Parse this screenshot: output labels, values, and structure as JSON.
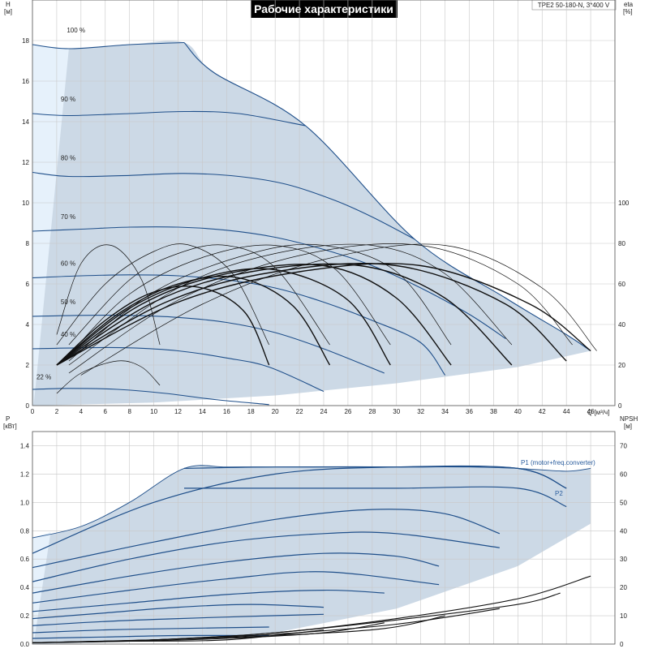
{
  "title": "Рабочие характеристики",
  "model": "TPE2 50-180-N, 3*400 V",
  "top": {
    "ylabel": "H",
    "yunit": "[м]",
    "ylabel_right": "eta",
    "yunit_right": "[%]",
    "xlabel": "Q [м³/ч]",
    "yticks": [
      "0",
      "2",
      "4",
      "6",
      "8",
      "10",
      "12",
      "14",
      "16",
      "18"
    ],
    "yticks_right": [
      "0",
      "20",
      "40",
      "60",
      "80",
      "100"
    ],
    "xticks": [
      "0",
      "2",
      "4",
      "6",
      "8",
      "10",
      "12",
      "14",
      "16",
      "18",
      "20",
      "22",
      "24",
      "26",
      "28",
      "30",
      "32",
      "34",
      "36",
      "38",
      "40",
      "42",
      "44",
      "46"
    ],
    "speed_labels": [
      "100 %",
      "90 %",
      "80 %",
      "70 %",
      "60 %",
      "50 %",
      "40 %",
      "22 %"
    ]
  },
  "bottom": {
    "ylabel": "P",
    "yunit": "[кВт]",
    "ylabel_right": "NPSH",
    "yunit_right": "[м]",
    "yticks": [
      "0.0",
      "0.2",
      "0.4",
      "0.6",
      "0.8",
      "1.0",
      "1.2",
      "1.4"
    ],
    "yticks_right": [
      "0",
      "10",
      "20",
      "30",
      "40",
      "50",
      "60",
      "70"
    ],
    "p1_label": "P1 (motor+freq.converter)",
    "p2_label": "P2"
  },
  "colors": {
    "fill": "#ccd9e6",
    "fill_light": "#e6f1fb",
    "curve": "#1f4f8a",
    "eta": "#111111",
    "title_bg": "#000000"
  },
  "chart_data": [
    {
      "type": "line",
      "title": "Рабочие характеристики",
      "xlabel": "Q [м³/ч]",
      "ylabel": "H [м]",
      "ylabel_right": "eta [%]",
      "xlim": [
        0,
        48
      ],
      "ylim": [
        0,
        20
      ],
      "ylim_right": [
        0,
        200
      ],
      "grid": true,
      "series": [
        {
          "name": "100 %",
          "x": [
            0,
            3,
            8,
            12.5
          ],
          "y": [
            17.8,
            17.6,
            17.8,
            17.9
          ]
        },
        {
          "name": "90 %",
          "x": [
            0,
            3,
            8,
            12.5,
            17,
            22.5
          ],
          "y": [
            14.4,
            14.3,
            14.4,
            14.5,
            14.4,
            13.8
          ]
        },
        {
          "name": "80 %",
          "x": [
            0,
            3,
            8,
            12.5,
            17,
            21,
            25,
            28,
            31.5
          ],
          "y": [
            11.5,
            11.3,
            11.35,
            11.45,
            11.3,
            10.9,
            10.1,
            9.3,
            8.2
          ]
        },
        {
          "name": "70 %",
          "x": [
            0,
            4,
            8,
            12,
            16,
            20,
            24,
            28,
            32,
            36,
            39
          ],
          "y": [
            8.6,
            8.7,
            8.8,
            8.8,
            8.65,
            8.3,
            7.7,
            6.9,
            5.8,
            4.5,
            3.3
          ]
        },
        {
          "name": "60 %",
          "x": [
            0,
            4,
            8,
            12,
            16,
            20,
            24,
            28,
            32,
            34
          ],
          "y": [
            6.3,
            6.4,
            6.45,
            6.4,
            6.2,
            5.8,
            5.1,
            4.2,
            3.1,
            1.5
          ]
        },
        {
          "name": "50 %",
          "x": [
            0,
            4,
            8,
            12,
            16,
            20,
            24,
            29
          ],
          "y": [
            4.4,
            4.45,
            4.45,
            4.35,
            4.1,
            3.6,
            2.8,
            1.6
          ]
        },
        {
          "name": "40 %",
          "x": [
            0,
            4,
            8,
            12,
            16,
            19.5,
            24
          ],
          "y": [
            2.8,
            2.85,
            2.85,
            2.7,
            2.35,
            1.9,
            0.7
          ]
        },
        {
          "name": "22 %",
          "x": [
            0,
            3,
            7,
            11,
            15,
            19.5
          ],
          "y": [
            0.8,
            0.85,
            0.8,
            0.6,
            0.3,
            0.05
          ]
        },
        {
          "name": "max",
          "x": [
            12.5,
            15,
            22.5,
            31.5,
            39,
            44,
            46
          ],
          "y": [
            17.9,
            16.4,
            13.8,
            8.2,
            5.3,
            3.5,
            2.7
          ]
        },
        {
          "name": "min",
          "x": [
            0,
            10,
            20,
            30,
            40,
            46
          ],
          "y": [
            0,
            0.15,
            0.5,
            1.1,
            1.9,
            2.7
          ]
        },
        {
          "name": "eta 1",
          "x": [
            2,
            4,
            6.5,
            9,
            10.5
          ],
          "y": [
            3.5,
            7.0,
            7.9,
            6.2,
            3.0
          ]
        },
        {
          "name": "eta 2",
          "x": [
            2,
            6,
            10,
            13,
            16.5,
            19.5
          ],
          "y": [
            3.0,
            6.0,
            7.6,
            7.9,
            6.5,
            3.0
          ]
        },
        {
          "name": "eta 3",
          "x": [
            3,
            8,
            12,
            16,
            20,
            24.5
          ],
          "y": [
            3.0,
            6.2,
            7.5,
            7.9,
            6.8,
            3.0
          ]
        },
        {
          "name": "eta 4",
          "x": [
            3,
            8,
            14,
            20,
            25,
            29.5
          ],
          "y": [
            2.5,
            5.5,
            7.3,
            7.9,
            6.7,
            3.0
          ]
        },
        {
          "name": "eta 5",
          "x": [
            3,
            10,
            18,
            24,
            30,
            34.5
          ],
          "y": [
            2.2,
            5.6,
            7.5,
            7.9,
            6.6,
            3.0
          ]
        },
        {
          "name": "eta 6",
          "x": [
            3,
            12,
            20,
            28,
            34,
            39.5
          ],
          "y": [
            2.0,
            5.8,
            7.5,
            7.9,
            6.5,
            3.0
          ]
        },
        {
          "name": "eta 7",
          "x": [
            3,
            12,
            22,
            32,
            40,
            44.5
          ],
          "y": [
            1.6,
            5.2,
            7.4,
            7.9,
            6.0,
            3.0
          ]
        },
        {
          "name": "eta 8",
          "x": [
            4,
            14,
            24,
            34,
            42,
            46.5
          ],
          "y": [
            1.5,
            5.0,
            7.2,
            7.9,
            5.8,
            2.7
          ]
        },
        {
          "name": "eta 22 %",
          "x": [
            2,
            4,
            7,
            9,
            10.5
          ],
          "y": [
            0.6,
            1.6,
            2.2,
            1.9,
            1.0
          ]
        },
        {
          "name": "eta b1",
          "x": [
            2,
            6,
            10,
            14,
            17.5,
            19.5
          ],
          "y": [
            2.0,
            4.2,
            5.6,
            5.8,
            4.6,
            2.0
          ]
        },
        {
          "name": "eta b2",
          "x": [
            2,
            7,
            12,
            17,
            21.5,
            24.5
          ],
          "y": [
            2.0,
            4.5,
            6.0,
            6.3,
            4.9,
            2.0
          ]
        },
        {
          "name": "eta b3",
          "x": [
            2,
            8,
            14,
            20,
            26,
            29.5
          ],
          "y": [
            2.0,
            4.8,
            6.3,
            6.7,
            5.2,
            2.0
          ]
        },
        {
          "name": "eta b4",
          "x": [
            2,
            9,
            16,
            24,
            30,
            34.5
          ],
          "y": [
            2.0,
            5.0,
            6.5,
            6.9,
            5.3,
            2.0
          ]
        },
        {
          "name": "eta b5",
          "x": [
            2,
            10,
            18,
            27,
            34,
            39.5
          ],
          "y": [
            2.0,
            5.1,
            6.6,
            6.9,
            5.3,
            2.0
          ]
        },
        {
          "name": "eta b6",
          "x": [
            2,
            11,
            20,
            30,
            39,
            44
          ],
          "y": [
            2.0,
            5.1,
            6.6,
            6.9,
            5.0,
            2.2
          ]
        },
        {
          "name": "eta b7",
          "x": [
            2,
            12,
            22,
            32,
            41,
            46
          ],
          "y": [
            2.0,
            5.1,
            6.6,
            6.9,
            5.0,
            2.7
          ]
        }
      ]
    },
    {
      "type": "line",
      "xlabel": "Q [м³/ч]",
      "ylabel": "P [кВт]",
      "ylabel_right": "NPSH [м]",
      "xlim": [
        0,
        48
      ],
      "ylim": [
        0,
        1.5
      ],
      "ylim_right": [
        0,
        75
      ],
      "grid": true,
      "series": [
        {
          "name": "P1 (motor+freq.converter)",
          "x": [
            12.5,
            20,
            30,
            40,
            44
          ],
          "y": [
            1.24,
            1.25,
            1.25,
            1.24,
            1.1
          ]
        },
        {
          "name": "P2",
          "x": [
            12.5,
            20,
            30,
            40,
            44
          ],
          "y": [
            1.1,
            1.1,
            1.1,
            1.1,
            0.97
          ]
        },
        {
          "name": "P max envelope",
          "x": [
            0,
            4,
            8,
            12.5,
            16,
            20,
            24,
            30,
            36,
            40,
            44,
            46
          ],
          "y": [
            0.75,
            0.83,
            1.0,
            1.24,
            1.25,
            1.25,
            1.25,
            1.25,
            1.25,
            1.24,
            1.22,
            1.24
          ]
        },
        {
          "name": "P min envelope",
          "x": [
            0,
            10,
            20,
            30,
            40,
            46
          ],
          "y": [
            0.0,
            0.02,
            0.08,
            0.25,
            0.55,
            0.85
          ]
        },
        {
          "name": "P 90 %",
          "x": [
            0,
            10,
            20,
            30,
            40,
            44
          ],
          "y": [
            0.64,
            1.0,
            1.2,
            1.25,
            1.24,
            1.1
          ]
        },
        {
          "name": "P 80 %",
          "x": [
            0,
            10,
            20,
            28,
            34,
            38.5
          ],
          "y": [
            0.54,
            0.72,
            0.88,
            0.95,
            0.92,
            0.78
          ]
        },
        {
          "name": "P 70 %",
          "x": [
            0,
            8,
            16,
            24,
            30,
            38.5
          ],
          "y": [
            0.44,
            0.6,
            0.72,
            0.78,
            0.78,
            0.68
          ]
        },
        {
          "name": "P 60 %",
          "x": [
            0,
            8,
            16,
            24,
            30,
            33.5
          ],
          "y": [
            0.36,
            0.48,
            0.58,
            0.64,
            0.62,
            0.55
          ]
        },
        {
          "name": "P 55 %",
          "x": [
            0,
            8,
            16,
            24,
            33.5
          ],
          "y": [
            0.29,
            0.38,
            0.46,
            0.51,
            0.42
          ]
        },
        {
          "name": "P 50 %",
          "x": [
            0,
            8,
            16,
            24,
            29
          ],
          "y": [
            0.23,
            0.29,
            0.35,
            0.38,
            0.36
          ]
        },
        {
          "name": "P 45 %",
          "x": [
            0,
            6,
            12,
            18,
            24
          ],
          "y": [
            0.18,
            0.22,
            0.26,
            0.28,
            0.26
          ]
        },
        {
          "name": "P 40 %",
          "x": [
            0,
            6,
            12,
            19.5,
            24
          ],
          "y": [
            0.13,
            0.16,
            0.18,
            0.2,
            0.21
          ]
        },
        {
          "name": "P 30 %",
          "x": [
            0,
            6,
            12,
            19.5
          ],
          "y": [
            0.08,
            0.1,
            0.11,
            0.12
          ]
        },
        {
          "name": "P 22 %",
          "x": [
            0,
            6,
            12,
            19.5
          ],
          "y": [
            0.04,
            0.05,
            0.06,
            0.06
          ]
        },
        {
          "name": "NPSH 1",
          "x": [
            0,
            10,
            20,
            30,
            40,
            46
          ],
          "y": [
            0.01,
            0.03,
            0.08,
            0.18,
            0.32,
            0.48
          ]
        },
        {
          "name": "NPSH 2",
          "x": [
            0,
            10,
            20,
            30,
            40,
            43.5
          ],
          "y": [
            0.01,
            0.03,
            0.08,
            0.17,
            0.28,
            0.36
          ]
        },
        {
          "name": "NPSH 3",
          "x": [
            0,
            10,
            20,
            30,
            38.5
          ],
          "y": [
            0.01,
            0.03,
            0.07,
            0.14,
            0.25
          ]
        },
        {
          "name": "NPSH 4",
          "x": [
            0,
            10,
            20,
            29,
            34
          ],
          "y": [
            0.01,
            0.03,
            0.06,
            0.11,
            0.2
          ]
        },
        {
          "name": "NPSH 5",
          "x": [
            0,
            8,
            16,
            24,
            29
          ],
          "y": [
            0.01,
            0.02,
            0.04,
            0.08,
            0.15
          ]
        },
        {
          "name": "NPSH 6",
          "x": [
            0,
            8,
            16,
            24
          ],
          "y": [
            0.01,
            0.02,
            0.03,
            0.1
          ]
        }
      ]
    }
  ]
}
